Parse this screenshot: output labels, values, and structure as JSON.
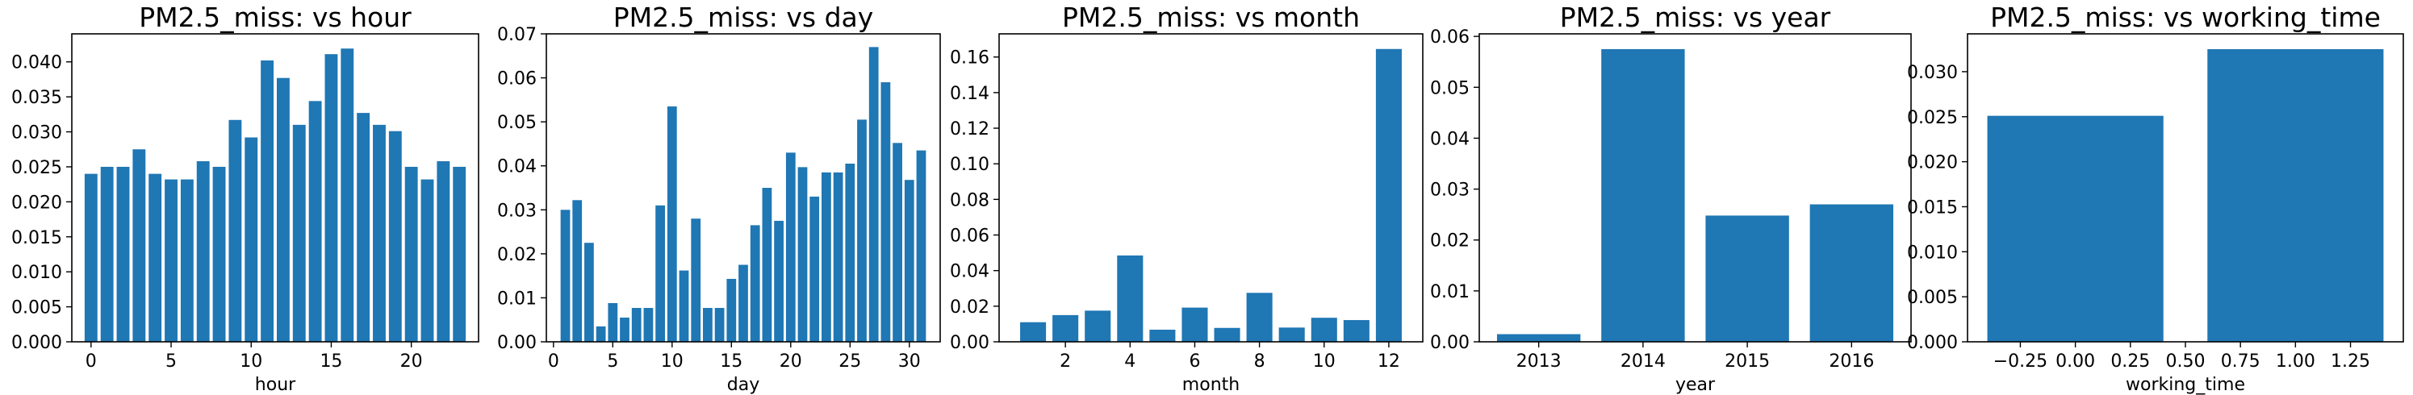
{
  "chart_data": [
    {
      "type": "bar",
      "title": "PM2.5_miss: vs hour",
      "xlabel": "hour",
      "ylabel": "",
      "x": [
        0,
        1,
        2,
        3,
        4,
        5,
        6,
        7,
        8,
        9,
        10,
        11,
        12,
        13,
        14,
        15,
        16,
        17,
        18,
        19,
        20,
        21,
        22,
        23
      ],
      "values": [
        0.024,
        0.025,
        0.025,
        0.0275,
        0.024,
        0.0232,
        0.0232,
        0.0258,
        0.025,
        0.0317,
        0.0292,
        0.0402,
        0.0377,
        0.031,
        0.0344,
        0.0411,
        0.0419,
        0.0327,
        0.031,
        0.0301,
        0.025,
        0.0232,
        0.0258,
        0.025
      ],
      "xlim": [
        -1.2,
        24.2
      ],
      "ylim": [
        0,
        0.044
      ],
      "xticks": [
        0,
        5,
        10,
        15,
        20
      ],
      "yticks": [
        0,
        0.005,
        0.01,
        0.015,
        0.02,
        0.025,
        0.03,
        0.035,
        0.04
      ],
      "ytick_labels": [
        "0.000",
        "0.005",
        "0.010",
        "0.015",
        "0.020",
        "0.025",
        "0.030",
        "0.035",
        "0.040"
      ]
    },
    {
      "type": "bar",
      "title": "PM2.5_miss: vs day",
      "xlabel": "day",
      "ylabel": "",
      "x": [
        1,
        2,
        3,
        4,
        5,
        6,
        7,
        8,
        9,
        10,
        11,
        12,
        13,
        14,
        15,
        16,
        17,
        18,
        19,
        20,
        21,
        22,
        23,
        24,
        25,
        26,
        27,
        28,
        29,
        30,
        31
      ],
      "values": [
        0.03,
        0.0322,
        0.0225,
        0.0035,
        0.0088,
        0.0055,
        0.0077,
        0.0077,
        0.031,
        0.0535,
        0.0162,
        0.028,
        0.0077,
        0.0077,
        0.0143,
        0.0175,
        0.0265,
        0.035,
        0.0275,
        0.043,
        0.0397,
        0.033,
        0.0385,
        0.0385,
        0.0405,
        0.0505,
        0.067,
        0.059,
        0.0452,
        0.0368,
        0.0435
      ],
      "xlim": [
        -0.6,
        32.6
      ],
      "ylim": [
        0,
        0.07
      ],
      "xticks": [
        0,
        5,
        10,
        15,
        20,
        25,
        30
      ],
      "yticks": [
        0,
        0.01,
        0.02,
        0.03,
        0.04,
        0.05,
        0.06,
        0.07
      ],
      "ytick_labels": [
        "0.00",
        "0.01",
        "0.02",
        "0.03",
        "0.04",
        "0.05",
        "0.06",
        "0.07"
      ]
    },
    {
      "type": "bar",
      "title": "PM2.5_miss: vs month",
      "xlabel": "month",
      "ylabel": "",
      "x": [
        1,
        2,
        3,
        4,
        5,
        6,
        7,
        8,
        9,
        10,
        11,
        12
      ],
      "values": [
        0.011,
        0.015,
        0.0175,
        0.0485,
        0.0068,
        0.0192,
        0.0078,
        0.0275,
        0.008,
        0.0135,
        0.0122,
        0.1645
      ],
      "xlim": [
        -0.05,
        13.05
      ],
      "ylim": [
        0,
        0.173
      ],
      "xticks": [
        2,
        4,
        6,
        8,
        10,
        12
      ],
      "yticks": [
        0,
        0.02,
        0.04,
        0.06,
        0.08,
        0.1,
        0.12,
        0.14,
        0.16
      ],
      "ytick_labels": [
        "0.00",
        "0.02",
        "0.04",
        "0.06",
        "0.08",
        "0.10",
        "0.12",
        "0.14",
        "0.16"
      ]
    },
    {
      "type": "bar",
      "title": "PM2.5_miss: vs year",
      "xlabel": "year",
      "ylabel": "",
      "x": [
        2013,
        2014,
        2015,
        2016
      ],
      "values": [
        0.0015,
        0.0575,
        0.0248,
        0.027
      ],
      "xlim": [
        2012.43,
        2016.57
      ],
      "ylim": [
        0,
        0.0605
      ],
      "xticks": [
        2013,
        2014,
        2015,
        2016
      ],
      "yticks": [
        0,
        0.01,
        0.02,
        0.03,
        0.04,
        0.05,
        0.06
      ],
      "ytick_labels": [
        "0.00",
        "0.01",
        "0.02",
        "0.03",
        "0.04",
        "0.05",
        "0.06"
      ]
    },
    {
      "type": "bar",
      "title": "PM2.5_miss: vs working_time",
      "xlabel": "working_time",
      "ylabel": "",
      "x": [
        0,
        1
      ],
      "values": [
        0.0251,
        0.0325
      ],
      "xlim": [
        -0.49,
        1.49
      ],
      "ylim": [
        0,
        0.0342
      ],
      "xticks": [
        -0.25,
        0.0,
        0.25,
        0.5,
        0.75,
        1.0,
        1.25
      ],
      "xtick_labels": [
        "−0.25",
        "0.00",
        "0.25",
        "0.50",
        "0.75",
        "1.00",
        "1.25"
      ],
      "yticks": [
        0,
        0.005,
        0.01,
        0.015,
        0.02,
        0.025,
        0.03
      ],
      "ytick_labels": [
        "0.000",
        "0.005",
        "0.010",
        "0.015",
        "0.020",
        "0.025",
        "0.030"
      ]
    }
  ],
  "colors": {
    "bar": "#1f77b4",
    "axis": "#000000",
    "background": "#ffffff"
  }
}
